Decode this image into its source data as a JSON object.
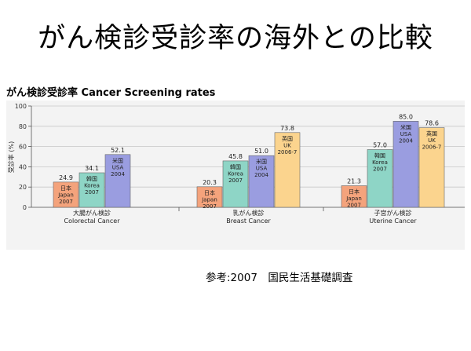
{
  "page": {
    "main_title": "がん検診受診率の海外との比較",
    "source": "参考:2007　国民生活基礎調査"
  },
  "chart_data": {
    "type": "bar",
    "title": "がん検診受診率 Cancer Screening rates",
    "ylabel": "受診率 (%)",
    "ylim": [
      0,
      100
    ],
    "yticks": [
      "0",
      "20",
      "40",
      "60",
      "80",
      "100"
    ],
    "grid": true,
    "groups": [
      {
        "label_jp": "大腸がん検診",
        "label_en": "Colorectal Cancer",
        "bars": [
          {
            "value": 24.9,
            "value_label": "24.9",
            "label_lines": [
              "日本",
              "Japan",
              "2007"
            ],
            "color": "#f4a37c"
          },
          {
            "value": 34.1,
            "value_label": "34.1",
            "label_lines": [
              "韓国",
              "Korea",
              "2007"
            ],
            "color": "#8ed5c6"
          },
          {
            "value": 52.1,
            "value_label": "52.1",
            "label_lines": [
              "米国",
              "USA",
              "2004"
            ],
            "color": "#9a9de0"
          }
        ]
      },
      {
        "label_jp": "乳がん検診",
        "label_en": "Breast Cancer",
        "bars": [
          {
            "value": 20.3,
            "value_label": "20.3",
            "label_lines": [
              "日本",
              "Japan",
              "2007"
            ],
            "color": "#f4a37c"
          },
          {
            "value": 45.8,
            "value_label": "45.8",
            "label_lines": [
              "韓国",
              "Korea",
              "2007"
            ],
            "color": "#8ed5c6"
          },
          {
            "value": 51.0,
            "value_label": "51.0",
            "label_lines": [
              "米国",
              "USA",
              "2004"
            ],
            "color": "#9a9de0"
          },
          {
            "value": 73.8,
            "value_label": "73.8",
            "label_lines": [
              "英国",
              "UK",
              "2006-7"
            ],
            "color": "#fbd48e"
          }
        ]
      },
      {
        "label_jp": "子宮がん検診",
        "label_en": "Uterine Cancer",
        "bars": [
          {
            "value": 21.3,
            "value_label": "21.3",
            "label_lines": [
              "日本",
              "Japan",
              "2007"
            ],
            "color": "#f4a37c"
          },
          {
            "value": 57.0,
            "value_label": "57.0",
            "label_lines": [
              "韓国",
              "Korea",
              "2007"
            ],
            "color": "#8ed5c6"
          },
          {
            "value": 85.0,
            "value_label": "85.0",
            "label_lines": [
              "米国",
              "USA",
              "2004"
            ],
            "color": "#9a9de0"
          },
          {
            "value": 78.6,
            "value_label": "78.6",
            "label_lines": [
              "英国",
              "UK",
              "2006-7"
            ],
            "color": "#fbd48e"
          }
        ]
      }
    ]
  }
}
